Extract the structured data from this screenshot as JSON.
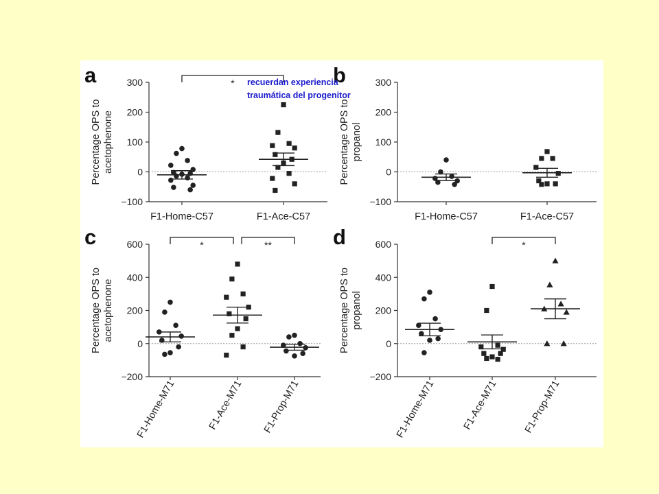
{
  "annotation": {
    "line1": "recuerdan experiencia",
    "line2": "traumática del progenitor",
    "color": "#1a1acc"
  },
  "background": "#ffffc8",
  "chart_data": [
    {
      "panel": "a",
      "type": "scatter",
      "ylabel": [
        "Percentage OPS to",
        "acetophenone"
      ],
      "ylim": [
        -100,
        300
      ],
      "yticks": [
        -100,
        0,
        100,
        200,
        300
      ],
      "categories": [
        "F1-Home-C57",
        "F1-Ace-C57"
      ],
      "rotate_categories": false,
      "groups": [
        {
          "marker": "circle",
          "mean": -10,
          "sem": 14,
          "points": [
            78,
            62,
            38,
            22,
            8,
            -2,
            -5,
            -8,
            -14,
            -20,
            -28,
            -45,
            -52,
            -60
          ]
        },
        {
          "marker": "square",
          "mean": 42,
          "sem": 21,
          "points": [
            225,
            132,
            95,
            88,
            80,
            58,
            42,
            30,
            15,
            -5,
            -22,
            -40,
            -62
          ]
        }
      ],
      "significance": [
        {
          "from": 0,
          "to": 1,
          "label": "*"
        }
      ]
    },
    {
      "panel": "b",
      "type": "scatter",
      "ylabel": [
        "Percentage OPS to",
        "propanol"
      ],
      "ylim": [
        -100,
        300
      ],
      "yticks": [
        -100,
        0,
        100,
        200,
        300
      ],
      "categories": [
        "F1-Home-C57",
        "F1-Ace-C57"
      ],
      "rotate_categories": false,
      "groups": [
        {
          "marker": "circle",
          "mean": -18,
          "sem": 11,
          "points": [
            40,
            0,
            -15,
            -22,
            -30,
            -35,
            -42
          ]
        },
        {
          "marker": "square",
          "mean": -3,
          "sem": 15,
          "points": [
            68,
            45,
            45,
            15,
            -5,
            -30,
            -40,
            -40,
            -42
          ]
        }
      ],
      "significance": []
    },
    {
      "panel": "c",
      "type": "scatter",
      "ylabel": [
        "Percentage OPS to",
        "acetophenone"
      ],
      "ylim": [
        -200,
        600
      ],
      "yticks": [
        -200,
        0,
        200,
        400,
        600
      ],
      "categories": [
        "F1-Home-M71",
        "F1-Ace-M71",
        "F1-Prop-M71"
      ],
      "rotate_categories": true,
      "groups": [
        {
          "marker": "circle",
          "mean": 40,
          "sem": 30,
          "points": [
            250,
            190,
            110,
            70,
            45,
            20,
            -20,
            -55,
            -65
          ]
        },
        {
          "marker": "square",
          "mean": 172,
          "sem": 48,
          "points": [
            480,
            390,
            300,
            280,
            220,
            180,
            150,
            90,
            50,
            -20,
            -70
          ]
        },
        {
          "marker": "circle",
          "mean": -22,
          "sem": 18,
          "points": [
            50,
            40,
            0,
            -10,
            -25,
            -45,
            -60,
            -75
          ]
        }
      ],
      "significance": [
        {
          "from": 0,
          "to": 1,
          "label": "*"
        },
        {
          "from": 1,
          "to": 2,
          "label": "**"
        }
      ]
    },
    {
      "panel": "d",
      "type": "scatter",
      "ylabel": [
        "Percentage OPS to",
        "propanol"
      ],
      "ylim": [
        -200,
        600
      ],
      "yticks": [
        -200,
        0,
        200,
        400,
        600
      ],
      "categories": [
        "F1-Home-M71",
        "F1-Ace-M71",
        "F1-Prop-M71"
      ],
      "rotate_categories": true,
      "groups": [
        {
          "marker": "circle",
          "mean": 85,
          "sem": 38,
          "points": [
            310,
            270,
            150,
            110,
            85,
            60,
            30,
            20,
            -55
          ]
        },
        {
          "marker": "square",
          "mean": 10,
          "sem": 42,
          "points": [
            345,
            200,
            -10,
            -20,
            -35,
            -60,
            -60,
            -80,
            -90,
            -95
          ]
        },
        {
          "marker": "triangle",
          "mean": 210,
          "sem": 60,
          "points": [
            500,
            355,
            240,
            210,
            190,
            0,
            0
          ]
        }
      ],
      "significance": [
        {
          "from": 1,
          "to": 2,
          "label": "*"
        }
      ]
    }
  ]
}
